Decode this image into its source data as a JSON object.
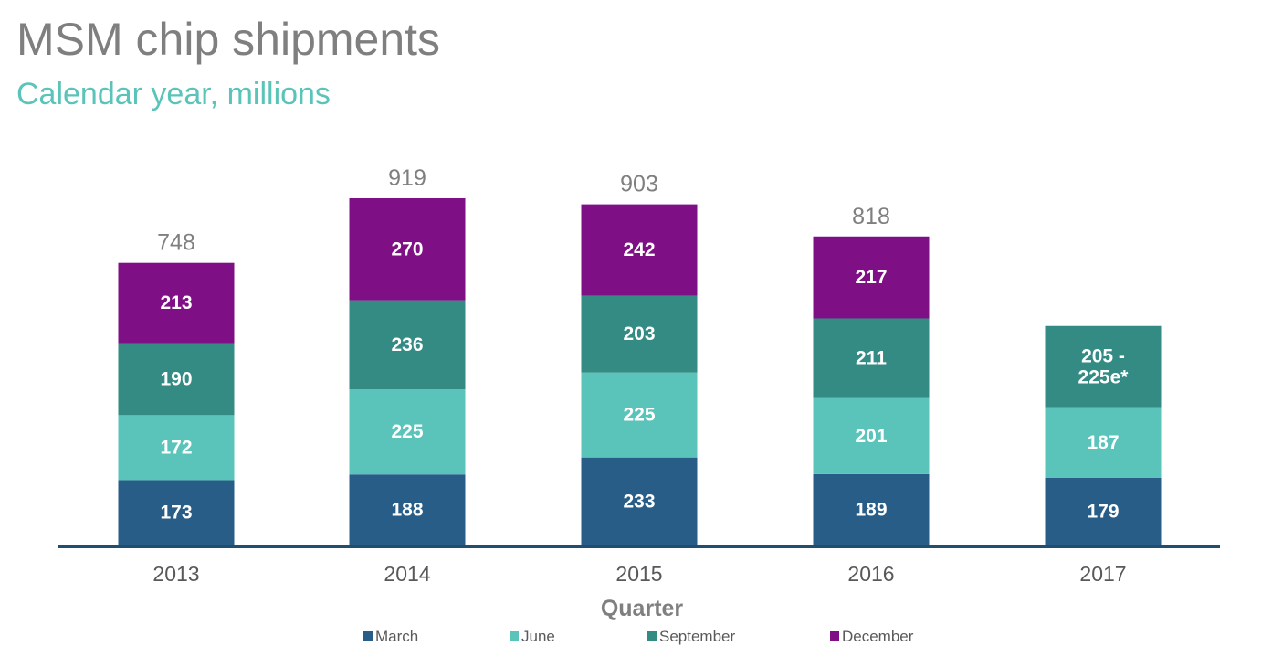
{
  "header": {
    "title": "MSM chip shipments",
    "subtitle": "Calendar year, millions"
  },
  "colors": {
    "title": "#7f7f7f",
    "subtitle": "#5bc4ba",
    "axis": "#1f4e6e"
  },
  "chart_data": {
    "type": "bar",
    "stacked": true,
    "title": "MSM chip shipments",
    "subtitle": "Calendar year, millions",
    "xlabel": "Quarter",
    "ylabel": "",
    "categories": [
      "2013",
      "2014",
      "2015",
      "2016",
      "2017"
    ],
    "series": [
      {
        "name": "March",
        "color": "#285d87",
        "values": [
          173,
          188,
          233,
          189,
          179
        ],
        "labels": [
          "173",
          "188",
          "233",
          "189",
          "179"
        ]
      },
      {
        "name": "June",
        "color": "#5bc4ba",
        "values": [
          172,
          225,
          225,
          201,
          187
        ],
        "labels": [
          "172",
          "225",
          "225",
          "201",
          "187"
        ]
      },
      {
        "name": "September",
        "color": "#338b83",
        "values": [
          190,
          236,
          203,
          211,
          215
        ],
        "labels": [
          "190",
          "236",
          "203",
          "211",
          "205 -\n225e*"
        ]
      },
      {
        "name": "December",
        "color": "#7f0f85",
        "values": [
          213,
          270,
          242,
          217,
          null
        ],
        "labels": [
          "213",
          "270",
          "242",
          "217",
          ""
        ]
      }
    ],
    "totals": [
      "748",
      "919",
      "903",
      "818",
      ""
    ],
    "ylim": [
      0,
      960
    ],
    "grid": false,
    "legend_position": "bottom"
  }
}
